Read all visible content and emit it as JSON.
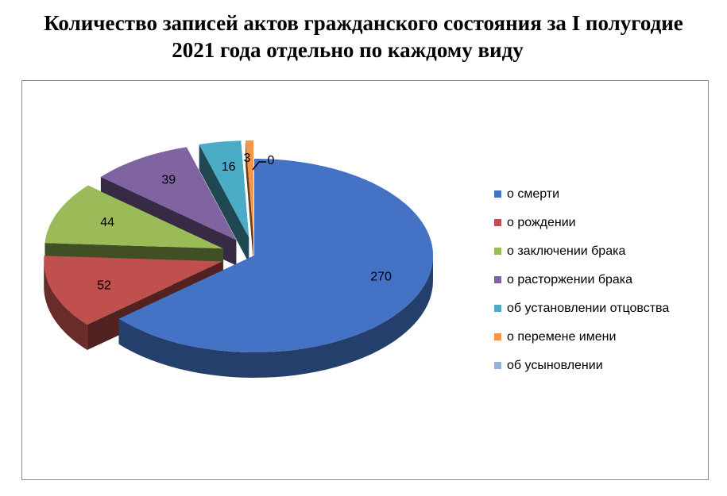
{
  "title": {
    "line1": "Количество записей актов гражданского состояния за I полугодие",
    "line2": "2021 года отдельно по каждому виду"
  },
  "chart_data": {
    "type": "pie",
    "style": "3d-exploded",
    "legend_position": "right",
    "categories": [
      "о смерти",
      "о рождении",
      "о заключении брака",
      "о расторжении брака",
      "об установлении отцовства",
      "о перемене имени",
      "об усыновлении"
    ],
    "values": [
      270,
      52,
      44,
      39,
      16,
      3,
      0
    ],
    "labels": [
      "270",
      "52",
      "44",
      "39",
      "16",
      "3",
      "0"
    ],
    "colors": [
      "#4472C4",
      "#C0504D",
      "#9BBB59",
      "#8064A2",
      "#4BACC6",
      "#F79646",
      "#95B3D7"
    ]
  }
}
